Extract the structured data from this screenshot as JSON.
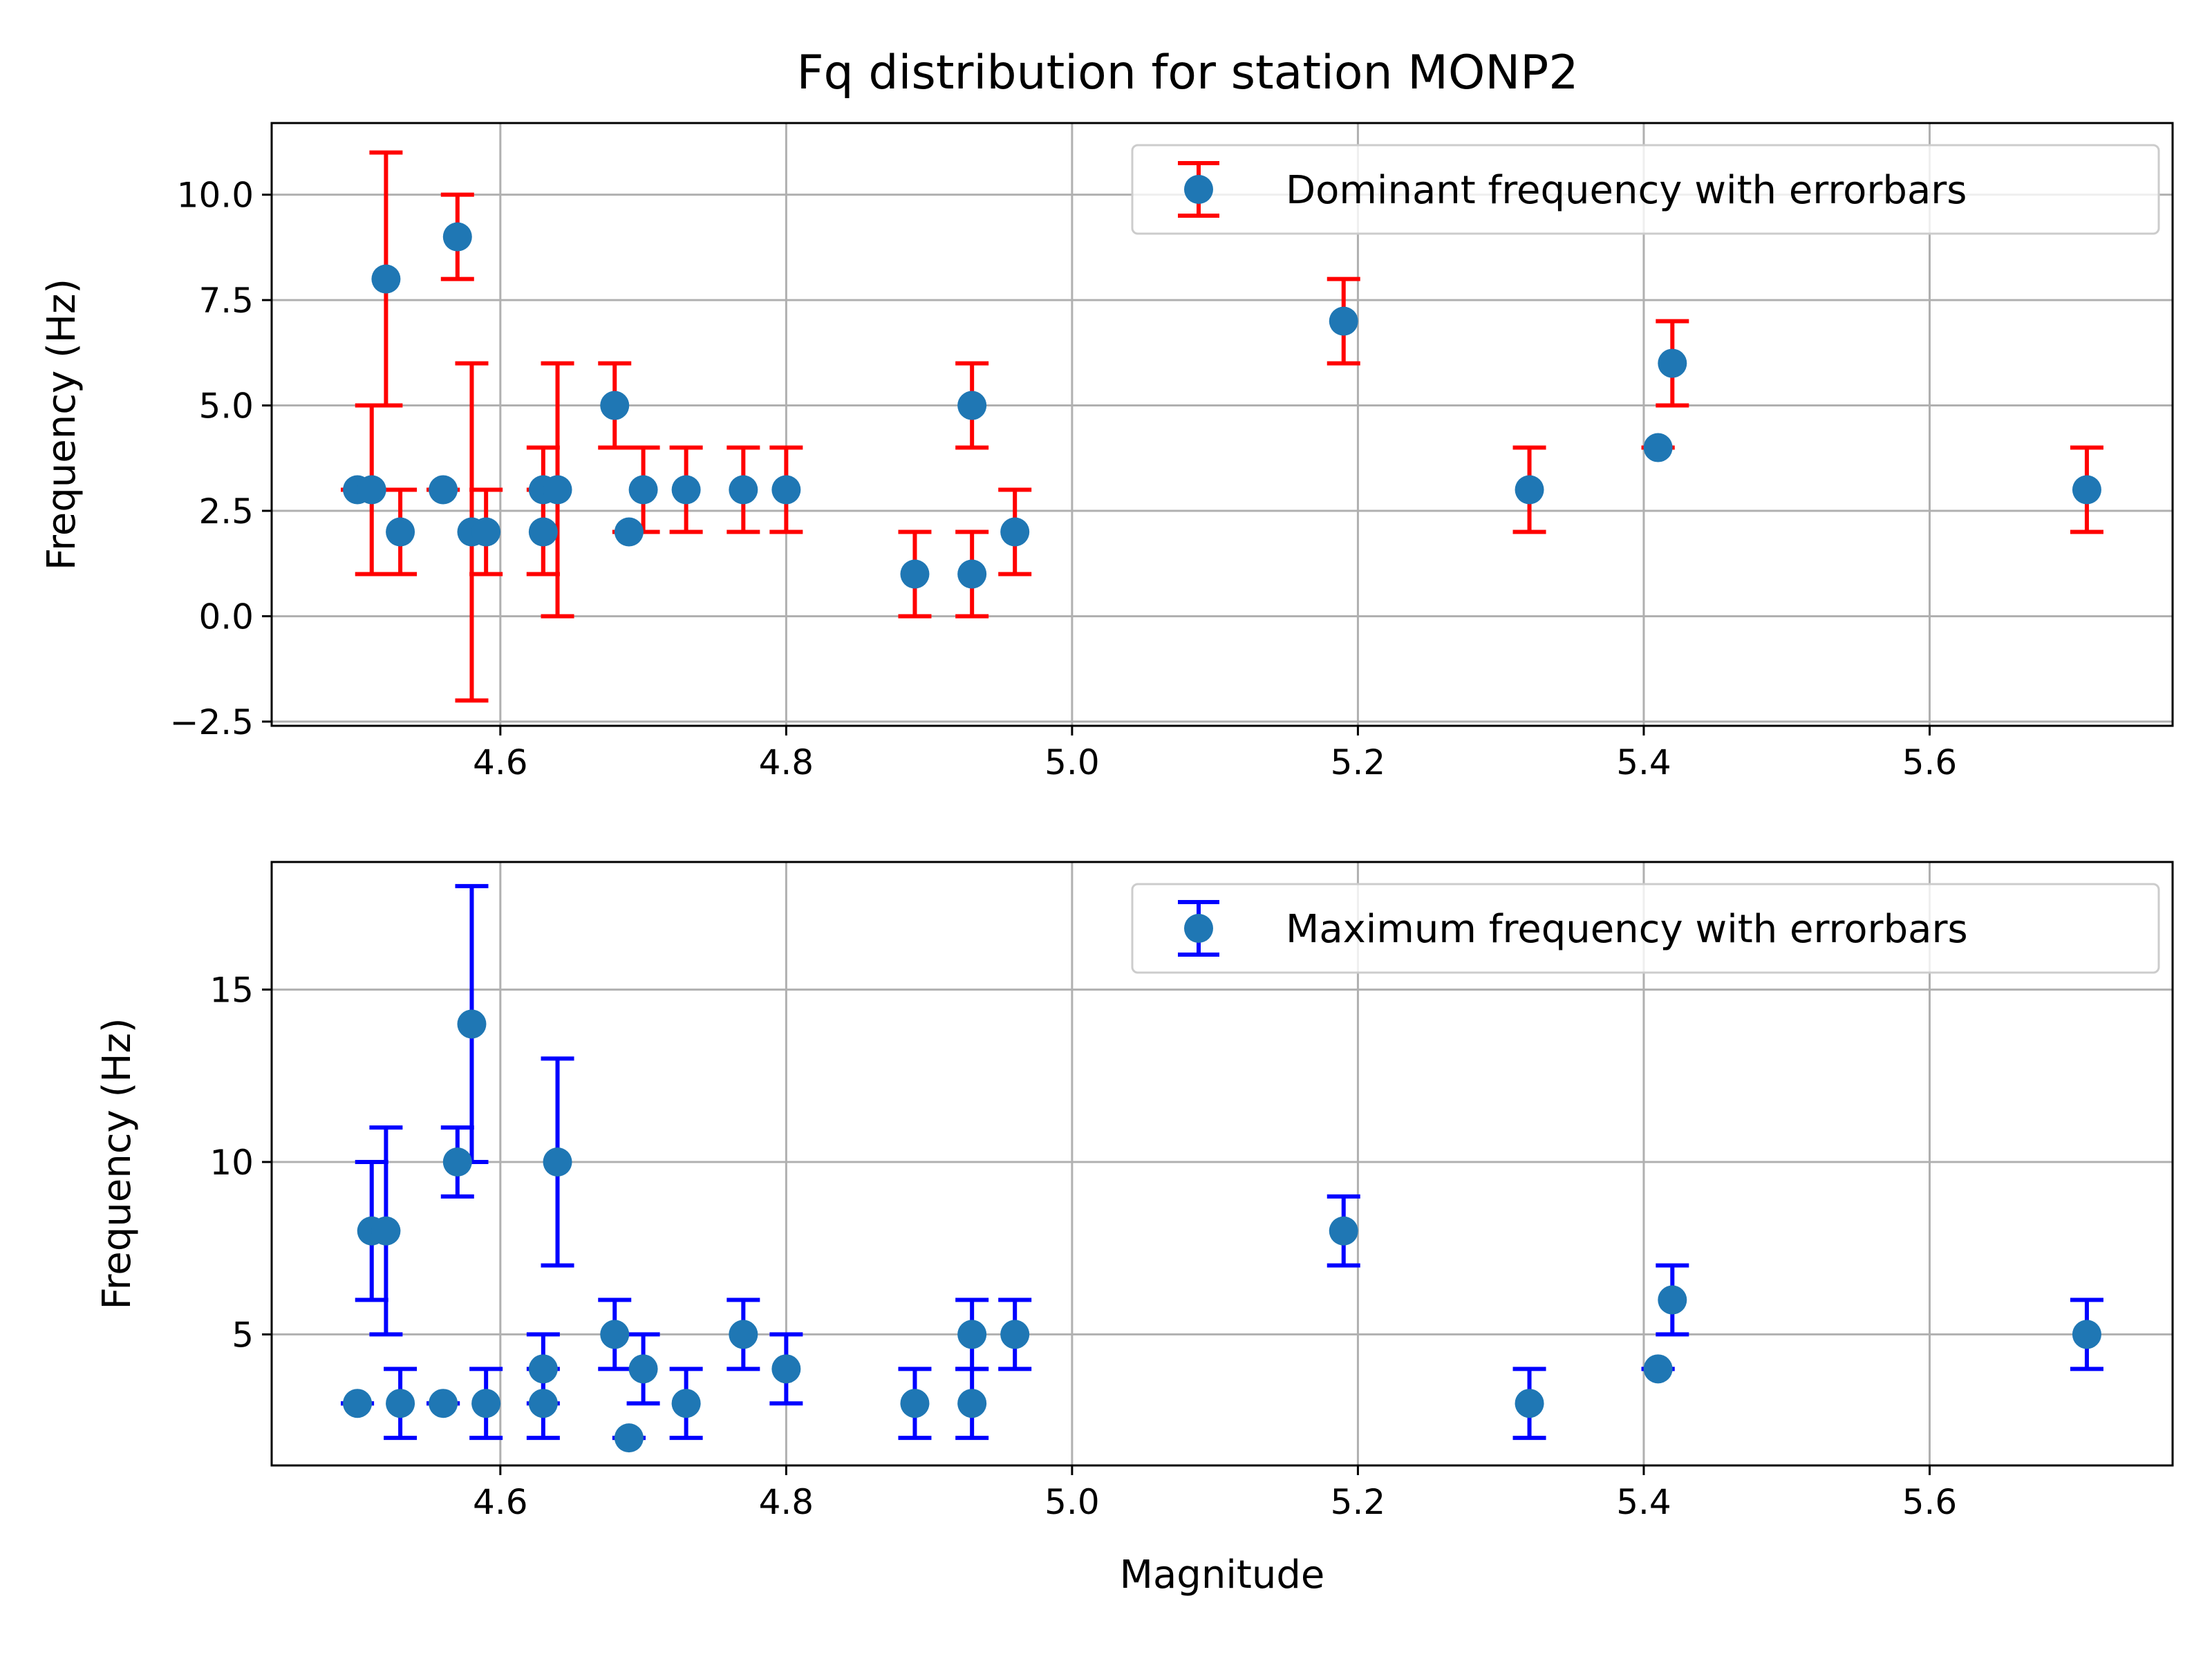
{
  "figure": {
    "title": "Fq distribution for station MONP2"
  },
  "chart_data": [
    {
      "type": "scatter",
      "title": "Fq distribution for station MONP2",
      "xlabel": "",
      "ylabel": "Frequency (Hz)",
      "xlim": [
        4.44,
        5.77
      ],
      "ylim": [
        -2.6,
        11.7
      ],
      "xticks": [
        4.6,
        4.8,
        5.0,
        5.2,
        5.4,
        5.6
      ],
      "xtick_labels": [
        "4.6",
        "4.8",
        "5.0",
        "5.2",
        "5.4",
        "5.6"
      ],
      "yticks": [
        -2.5,
        0.0,
        2.5,
        5.0,
        7.5,
        10.0
      ],
      "ytick_labels": [
        "−2.5",
        "0.0",
        "2.5",
        "5.0",
        "7.5",
        "10.0"
      ],
      "grid": true,
      "legend_position": "top-right",
      "series": [
        {
          "name": "Dominant frequency with errorbars",
          "marker_color": "#1f77b4",
          "errorbar_color": "#ff0000",
          "points": [
            {
              "x": 4.5,
              "y": 3,
              "ylow": 3,
              "yhigh": 3
            },
            {
              "x": 4.51,
              "y": 3,
              "ylow": 1,
              "yhigh": 5
            },
            {
              "x": 4.52,
              "y": 8,
              "ylow": 5,
              "yhigh": 11
            },
            {
              "x": 4.53,
              "y": 2,
              "ylow": 1,
              "yhigh": 3
            },
            {
              "x": 4.56,
              "y": 3,
              "ylow": 3,
              "yhigh": 3
            },
            {
              "x": 4.57,
              "y": 9,
              "ylow": 8,
              "yhigh": 10
            },
            {
              "x": 4.58,
              "y": 2,
              "ylow": -2,
              "yhigh": 6
            },
            {
              "x": 4.59,
              "y": 2,
              "ylow": 1,
              "yhigh": 3
            },
            {
              "x": 4.63,
              "y": 2,
              "ylow": 1,
              "yhigh": 3
            },
            {
              "x": 4.63,
              "y": 3,
              "ylow": 1,
              "yhigh": 4
            },
            {
              "x": 4.64,
              "y": 3,
              "ylow": 0,
              "yhigh": 6
            },
            {
              "x": 4.68,
              "y": 5,
              "ylow": 4,
              "yhigh": 6
            },
            {
              "x": 4.69,
              "y": 2,
              "ylow": 2,
              "yhigh": 2
            },
            {
              "x": 4.7,
              "y": 3,
              "ylow": 2,
              "yhigh": 4
            },
            {
              "x": 4.73,
              "y": 3,
              "ylow": 2,
              "yhigh": 4
            },
            {
              "x": 4.77,
              "y": 3,
              "ylow": 2,
              "yhigh": 4
            },
            {
              "x": 4.8,
              "y": 3,
              "ylow": 2,
              "yhigh": 4
            },
            {
              "x": 4.89,
              "y": 1,
              "ylow": 0,
              "yhigh": 2
            },
            {
              "x": 4.93,
              "y": 1,
              "ylow": 0,
              "yhigh": 2
            },
            {
              "x": 4.93,
              "y": 5,
              "ylow": 4,
              "yhigh": 6
            },
            {
              "x": 4.96,
              "y": 2,
              "ylow": 1,
              "yhigh": 3
            },
            {
              "x": 5.19,
              "y": 7,
              "ylow": 6,
              "yhigh": 8
            },
            {
              "x": 5.32,
              "y": 3,
              "ylow": 2,
              "yhigh": 4
            },
            {
              "x": 5.41,
              "y": 4,
              "ylow": 4,
              "yhigh": 4
            },
            {
              "x": 5.42,
              "y": 6,
              "ylow": 5,
              "yhigh": 7
            },
            {
              "x": 5.71,
              "y": 3,
              "ylow": 2,
              "yhigh": 4
            }
          ]
        }
      ]
    },
    {
      "type": "scatter",
      "title": "",
      "xlabel": "Magnitude",
      "ylabel": "Frequency (Hz)",
      "xlim": [
        4.44,
        5.77
      ],
      "ylim": [
        1.2,
        18.7
      ],
      "xticks": [
        4.6,
        4.8,
        5.0,
        5.2,
        5.4,
        5.6
      ],
      "xtick_labels": [
        "4.6",
        "4.8",
        "5.0",
        "5.2",
        "5.4",
        "5.6"
      ],
      "yticks": [
        5,
        10,
        15
      ],
      "ytick_labels": [
        "5",
        "10",
        "15"
      ],
      "grid": true,
      "legend_position": "top-right",
      "series": [
        {
          "name": "Maximum frequency with errorbars",
          "marker_color": "#1f77b4",
          "errorbar_color": "#0000ff",
          "points": [
            {
              "x": 4.5,
              "y": 3,
              "ylow": 3,
              "yhigh": 3
            },
            {
              "x": 4.51,
              "y": 8,
              "ylow": 6,
              "yhigh": 10
            },
            {
              "x": 4.52,
              "y": 8,
              "ylow": 5,
              "yhigh": 11
            },
            {
              "x": 4.53,
              "y": 3,
              "ylow": 2,
              "yhigh": 4
            },
            {
              "x": 4.56,
              "y": 3,
              "ylow": 3,
              "yhigh": 3
            },
            {
              "x": 4.57,
              "y": 10,
              "ylow": 9,
              "yhigh": 11
            },
            {
              "x": 4.58,
              "y": 14,
              "ylow": 10,
              "yhigh": 18
            },
            {
              "x": 4.59,
              "y": 3,
              "ylow": 2,
              "yhigh": 4
            },
            {
              "x": 4.63,
              "y": 3,
              "ylow": 2,
              "yhigh": 4
            },
            {
              "x": 4.63,
              "y": 4,
              "ylow": 3,
              "yhigh": 5
            },
            {
              "x": 4.64,
              "y": 10,
              "ylow": 7,
              "yhigh": 13
            },
            {
              "x": 4.68,
              "y": 5,
              "ylow": 4,
              "yhigh": 6
            },
            {
              "x": 4.69,
              "y": 2,
              "ylow": 2,
              "yhigh": 2
            },
            {
              "x": 4.7,
              "y": 4,
              "ylow": 3,
              "yhigh": 5
            },
            {
              "x": 4.73,
              "y": 3,
              "ylow": 2,
              "yhigh": 4
            },
            {
              "x": 4.77,
              "y": 5,
              "ylow": 4,
              "yhigh": 6
            },
            {
              "x": 4.8,
              "y": 4,
              "ylow": 3,
              "yhigh": 5
            },
            {
              "x": 4.89,
              "y": 3,
              "ylow": 2,
              "yhigh": 4
            },
            {
              "x": 4.93,
              "y": 3,
              "ylow": 2,
              "yhigh": 4
            },
            {
              "x": 4.93,
              "y": 5,
              "ylow": 4,
              "yhigh": 6
            },
            {
              "x": 4.96,
              "y": 5,
              "ylow": 4,
              "yhigh": 6
            },
            {
              "x": 5.19,
              "y": 8,
              "ylow": 7,
              "yhigh": 9
            },
            {
              "x": 5.32,
              "y": 3,
              "ylow": 2,
              "yhigh": 4
            },
            {
              "x": 5.41,
              "y": 4,
              "ylow": 4,
              "yhigh": 4
            },
            {
              "x": 5.42,
              "y": 6,
              "ylow": 5,
              "yhigh": 7
            },
            {
              "x": 5.71,
              "y": 5,
              "ylow": 4,
              "yhigh": 6
            }
          ]
        }
      ]
    }
  ]
}
